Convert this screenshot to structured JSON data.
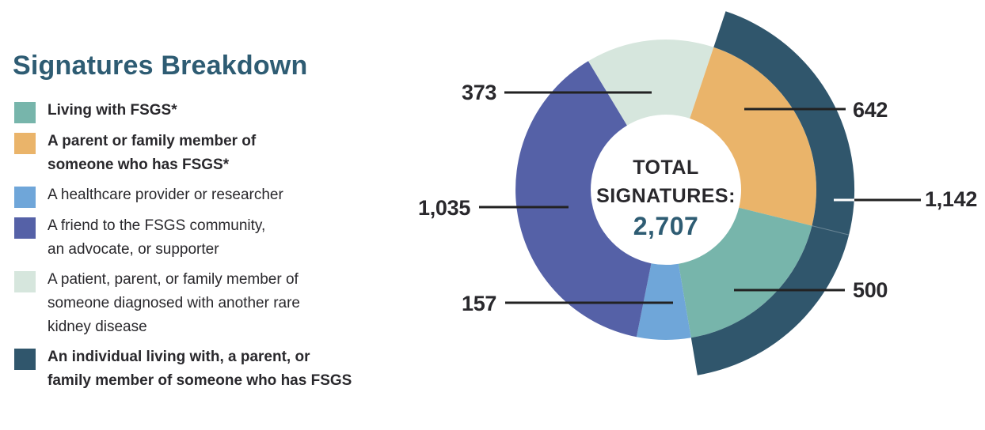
{
  "title": "Signatures Breakdown",
  "legend": {
    "items": [
      {
        "label": "Living with FSGS*",
        "color": "#77B5AB",
        "bold": true
      },
      {
        "label": "A parent or family member of\nsomeone who has FSGS*",
        "color": "#EAB46A",
        "bold": true
      },
      {
        "label": "A healthcare provider or researcher",
        "color": "#6FA6D9",
        "bold": false
      },
      {
        "label": "A friend to the FSGS community,\nan advocate, or supporter",
        "color": "#5561A7",
        "bold": false
      },
      {
        "label": "A patient, parent, or family member of\nsomeone diagnosed with another rare\nkidney disease",
        "color": "#D6E6DD",
        "bold": false
      },
      {
        "label": "An individual living with, a parent, or\nfamily member of someone who has FSGS",
        "color": "#30566C",
        "bold": true
      }
    ]
  },
  "donut": {
    "center_label_line1": "TOTAL",
    "center_label_line2": "SIGNATURES:",
    "center_value": "2,707"
  },
  "chart_data": {
    "type": "pie",
    "title": "Signatures Breakdown",
    "total": {
      "label": "TOTAL SIGNATURES:",
      "value": 2707,
      "display": "2,707"
    },
    "start_angle_deg": -31.1,
    "segments": [
      {
        "id": "mint",
        "value": 373,
        "display": "373",
        "color": "#D6E6DD",
        "legend": "A patient, parent, or family member of someone diagnosed with another rare kidney disease"
      },
      {
        "id": "orange",
        "value": 642,
        "display": "642",
        "color": "#EAB46A",
        "legend": "A parent or family member of someone who has FSGS*"
      },
      {
        "id": "teal",
        "value": 500,
        "display": "500",
        "color": "#77B5AB",
        "legend": "Living with FSGS*"
      },
      {
        "id": "blue",
        "value": 157,
        "display": "157",
        "color": "#6FA6D9",
        "legend": "A healthcare provider or researcher"
      },
      {
        "id": "purple",
        "value": 1035,
        "display": "1,035",
        "color": "#5561A7",
        "legend": "A friend to the FSGS community, an advocate, or supporter"
      }
    ],
    "outer_arc": {
      "id": "dark",
      "value": 1142,
      "display": "1,142",
      "color": "#30566C",
      "legend": "An individual living with, a parent, or family member of someone who has FSGS",
      "covers": [
        "orange",
        "teal"
      ]
    }
  }
}
